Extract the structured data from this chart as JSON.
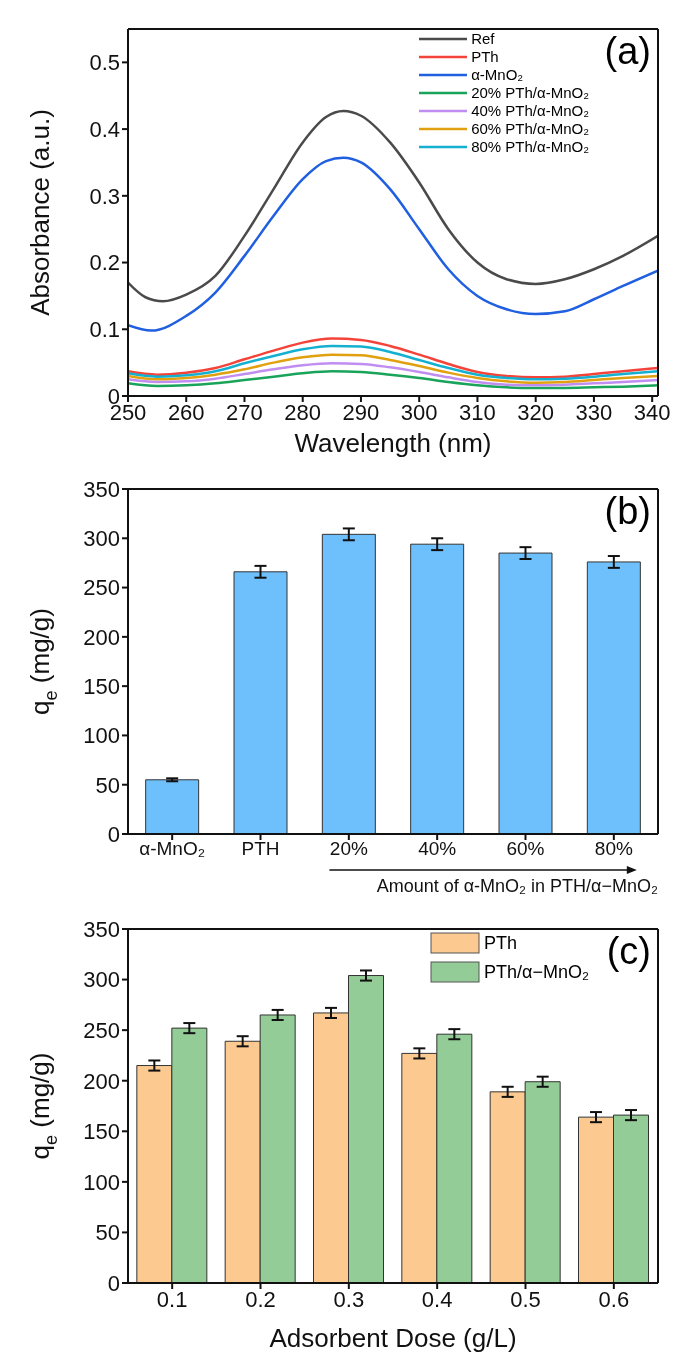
{
  "chart_data": [
    {
      "type": "line",
      "xlabel": "Wavelength (nm)",
      "ylabel": "Absorbance (a.u.)",
      "xlim": [
        250,
        341
      ],
      "xticks": [
        250,
        260,
        270,
        280,
        290,
        300,
        310,
        320,
        330,
        340
      ],
      "ylim": [
        0,
        0.55
      ],
      "yticks": [
        0.0,
        0.1,
        0.2,
        0.3,
        0.4,
        0.5
      ],
      "grid": false,
      "legend": "top right",
      "annotations": [
        "(a)"
      ],
      "series": [
        {
          "name": "Ref",
          "color": "#4a4a4a",
          "x": [
            250,
            253,
            256,
            260,
            265,
            270,
            275,
            280,
            284,
            287,
            290,
            295,
            300,
            305,
            310,
            315,
            320,
            325,
            330,
            335,
            341
          ],
          "values": [
            0.17,
            0.148,
            0.142,
            0.152,
            0.18,
            0.24,
            0.31,
            0.38,
            0.418,
            0.427,
            0.42,
            0.38,
            0.32,
            0.25,
            0.2,
            0.175,
            0.168,
            0.175,
            0.19,
            0.21,
            0.24
          ]
        },
        {
          "name": "PTh",
          "color": "#f4443a",
          "x": [
            250,
            255,
            260,
            265,
            270,
            275,
            280,
            285,
            290,
            295,
            300,
            305,
            310,
            315,
            320,
            325,
            330,
            335,
            341
          ],
          "values": [
            0.037,
            0.032,
            0.035,
            0.042,
            0.055,
            0.068,
            0.08,
            0.086,
            0.084,
            0.075,
            0.062,
            0.048,
            0.036,
            0.03,
            0.028,
            0.029,
            0.033,
            0.037,
            0.042
          ]
        },
        {
          "name": "α-MnO₂",
          "color": "#1f5fe0",
          "x": [
            250,
            254,
            260,
            265,
            270,
            275,
            280,
            284,
            287,
            290,
            295,
            300,
            305,
            310,
            315,
            320,
            325,
            330,
            335,
            341
          ],
          "values": [
            0.106,
            0.098,
            0.12,
            0.155,
            0.21,
            0.27,
            0.325,
            0.352,
            0.357,
            0.35,
            0.31,
            0.25,
            0.19,
            0.15,
            0.13,
            0.123,
            0.127,
            0.145,
            0.165,
            0.188
          ]
        },
        {
          "name": "20% PTh/α-MnO₂",
          "color": "#1aa35a",
          "x": [
            250,
            255,
            260,
            265,
            270,
            275,
            280,
            285,
            290,
            295,
            300,
            305,
            310,
            315,
            320,
            325,
            330,
            335,
            341
          ],
          "values": [
            0.019,
            0.015,
            0.016,
            0.019,
            0.024,
            0.029,
            0.034,
            0.037,
            0.036,
            0.032,
            0.027,
            0.021,
            0.016,
            0.013,
            0.012,
            0.012,
            0.013,
            0.014,
            0.016
          ]
        },
        {
          "name": "40% PTh/α-MnO₂",
          "color": "#c08ef0",
          "x": [
            250,
            255,
            260,
            265,
            270,
            275,
            280,
            285,
            290,
            295,
            300,
            305,
            310,
            315,
            320,
            325,
            330,
            335,
            341
          ],
          "values": [
            0.025,
            0.021,
            0.022,
            0.026,
            0.033,
            0.04,
            0.046,
            0.049,
            0.048,
            0.043,
            0.036,
            0.028,
            0.021,
            0.017,
            0.016,
            0.017,
            0.019,
            0.021,
            0.024
          ]
        },
        {
          "name": "60% PTh/α-MnO₂",
          "color": "#e0a010",
          "x": [
            250,
            255,
            260,
            265,
            270,
            275,
            280,
            285,
            290,
            295,
            300,
            305,
            310,
            315,
            320,
            325,
            330,
            335,
            341
          ],
          "values": [
            0.03,
            0.025,
            0.027,
            0.032,
            0.04,
            0.05,
            0.058,
            0.062,
            0.061,
            0.054,
            0.045,
            0.035,
            0.027,
            0.022,
            0.02,
            0.021,
            0.024,
            0.027,
            0.03
          ]
        },
        {
          "name": "80% PTh/α-MnO₂",
          "color": "#14b0d0",
          "x": [
            250,
            255,
            260,
            265,
            270,
            275,
            280,
            285,
            290,
            295,
            300,
            305,
            310,
            315,
            320,
            325,
            330,
            335,
            341
          ],
          "values": [
            0.034,
            0.029,
            0.031,
            0.037,
            0.049,
            0.06,
            0.07,
            0.075,
            0.074,
            0.066,
            0.054,
            0.042,
            0.032,
            0.027,
            0.025,
            0.026,
            0.029,
            0.033,
            0.037
          ]
        }
      ]
    },
    {
      "type": "bar",
      "xlabel": "Amount of α-MnO₂ in PTH/α−MnO₂",
      "ylabel": "q$_{e}$ (mg/g)",
      "ylim": [
        0,
        350
      ],
      "yticks": [
        0,
        50,
        100,
        150,
        200,
        250,
        300,
        350
      ],
      "grid": false,
      "annotations": [
        "(b)"
      ],
      "categories": [
        "α-MnO₂",
        "PTH",
        "20%",
        "40%",
        "60%",
        "80%"
      ],
      "values": [
        55,
        266,
        304,
        294,
        285,
        276
      ],
      "errors": [
        1.5,
        6,
        6,
        6,
        6,
        6
      ],
      "color": "#6ec0fc"
    },
    {
      "type": "bar",
      "xlabel": "Adsorbent Dose (g/L)",
      "ylabel": "q$_{e}$ (mg/g)",
      "ylim": [
        0,
        350
      ],
      "yticks": [
        0,
        50,
        100,
        150,
        200,
        250,
        300,
        350
      ],
      "grid": false,
      "legend": "top right",
      "annotations": [
        "(c)"
      ],
      "categories": [
        "0.1",
        "0.2",
        "0.3",
        "0.4",
        "0.5",
        "0.6"
      ],
      "series": [
        {
          "name": "PTh",
          "color": "#fcc991",
          "values": [
            215,
            239,
            267,
            227,
            189,
            164
          ],
          "errors": [
            5,
            5,
            5,
            5,
            5,
            5
          ]
        },
        {
          "name": "PTh/α−MnO₂",
          "color": "#93cc97",
          "values": [
            252,
            265,
            304,
            246,
            199,
            166
          ],
          "errors": [
            5,
            5,
            5,
            5,
            5,
            5
          ]
        }
      ]
    }
  ]
}
